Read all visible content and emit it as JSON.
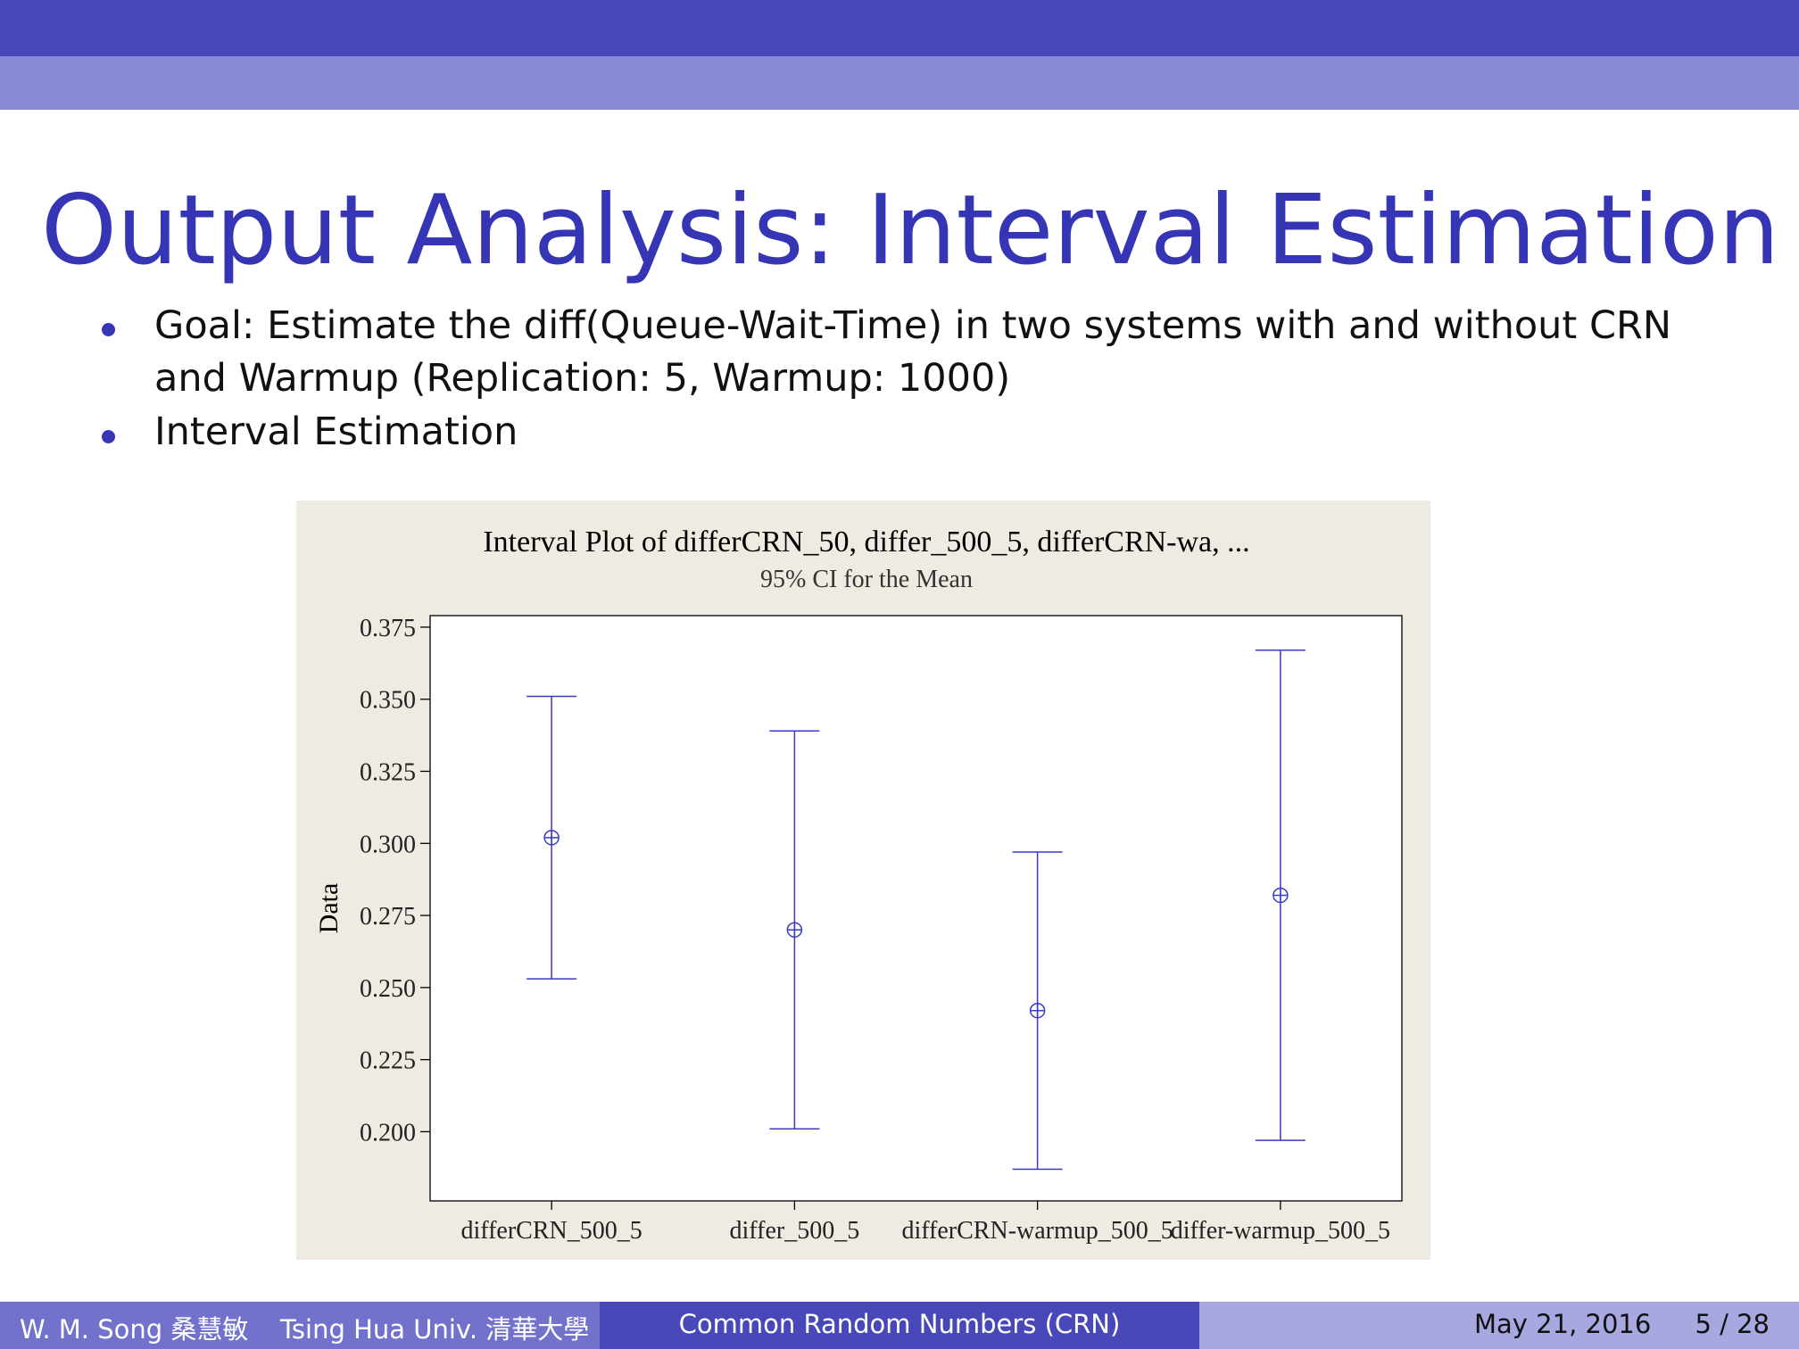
{
  "header": {
    "title": "Output Analysis: Interval Estimation"
  },
  "bullets": [
    [
      "Goal: Estimate the diff(Queue-Wait-Time) in two systems with and without CRN",
      "and Warmup (Replication: 5, Warmup: 1000)"
    ],
    [
      "Interval Estimation"
    ]
  ],
  "chart_data": {
    "type": "interval",
    "title": "Interval Plot of differCRN_50, differ_500_5, differCRN-wa, ...",
    "subtitle": "95% CI for the Mean",
    "y_label": "Data",
    "categories": [
      "differCRN_500_5",
      "differ_500_5",
      "differCRN-warmup_500_5",
      "differ-warmup_500_5"
    ],
    "values": [
      0.302,
      0.27,
      0.242,
      0.282
    ],
    "lower": [
      0.253,
      0.201,
      0.187,
      0.197
    ],
    "upper": [
      0.351,
      0.339,
      0.297,
      0.367
    ],
    "color": "#3b3bc0",
    "ylim": [
      0.176,
      0.379
    ],
    "yticks": [
      {
        "value": 0.2,
        "label": "0.200"
      },
      0.225,
      {
        "value": 0.25,
        "label": "0.250"
      },
      0.275,
      {
        "value": 0.3,
        "label": "0.300"
      },
      0.325,
      {
        "value": 0.35,
        "label": "0.350"
      },
      0.375
    ]
  },
  "footer": {
    "author": "W. M. Song 桑慧敏",
    "institution": "Tsing Hua Univ. 清華大學",
    "talk_title": "Common Random Numbers (CRN)",
    "date": "May 21, 2016",
    "page": "5 / 28"
  }
}
